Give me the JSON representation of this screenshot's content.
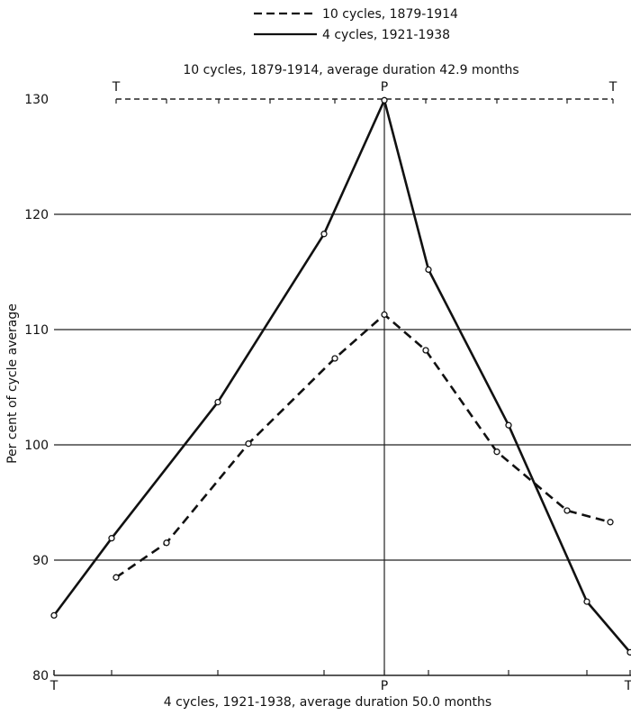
{
  "chart_data": {
    "type": "line",
    "legend": {
      "placement": "top",
      "entries": [
        {
          "label": "10 cycles, 1879-1914",
          "style": "dashed"
        },
        {
          "label": "4 cycles, 1921-1938",
          "style": "solid"
        }
      ]
    },
    "top_axis_label": "10 cycles, 1879-1914, average duration 42.9 months",
    "bottom_axis_label": "4 cycles, 1921-1938, average duration 50.0 months",
    "ylabel": "Per cent of cycle average",
    "ylim": [
      80,
      130
    ],
    "yticks": [
      80,
      90,
      100,
      110,
      120,
      130
    ],
    "grid": true,
    "top_axis_ticks": [
      "T",
      "P",
      "T"
    ],
    "bottom_axis_ticks": [
      "T",
      "P",
      "T"
    ],
    "series": [
      {
        "name": "10 cycles, 1879-1914",
        "style": "dashed",
        "stage_positions": [
          1,
          2,
          3,
          4,
          5,
          6,
          7,
          8,
          9
        ],
        "values": [
          88.5,
          91.5,
          100.1,
          107.5,
          111.3,
          108.2,
          99.4,
          94.3,
          93.3
        ]
      },
      {
        "name": "4 cycles, 1921-1938",
        "style": "solid",
        "stage_positions": [
          1,
          2,
          3,
          4,
          5,
          6,
          7,
          8,
          9
        ],
        "values": [
          85.2,
          91.9,
          103.7,
          118.3,
          129.9,
          115.2,
          101.7,
          86.4,
          82.0
        ]
      }
    ]
  }
}
